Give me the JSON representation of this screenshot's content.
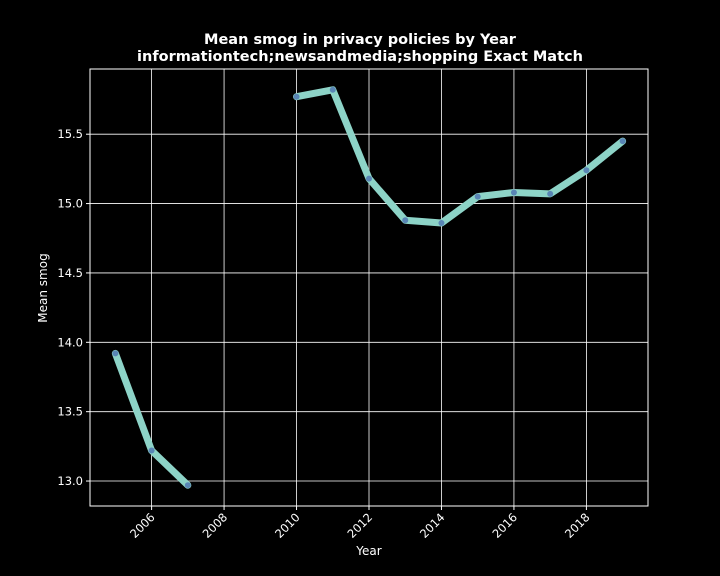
{
  "chart_data": {
    "type": "line",
    "title": "Mean smog in privacy policies by Year",
    "subtitle": "informationtech;newsandmedia;shopping Exact Match",
    "xlabel": "Year",
    "ylabel": "Mean smog",
    "xlim": [
      2004.3,
      2019.7
    ],
    "ylim": [
      12.82,
      15.97
    ],
    "x_ticks": [
      2006,
      2008,
      2010,
      2012,
      2014,
      2016,
      2018
    ],
    "y_ticks": [
      13.0,
      13.5,
      14.0,
      14.5,
      15.0,
      15.5
    ],
    "grid": true,
    "series": [
      {
        "segments": [
          {
            "x": [
              2005,
              2006,
              2007
            ],
            "y": [
              13.92,
              13.22,
              12.97
            ]
          },
          {
            "x": [
              2010,
              2011,
              2012,
              2013,
              2014,
              2015,
              2016,
              2017,
              2018,
              2019
            ],
            "y": [
              15.77,
              15.82,
              15.18,
              14.88,
              14.86,
              15.05,
              15.08,
              15.07,
              15.24,
              15.45
            ]
          }
        ]
      }
    ],
    "colors": {
      "background": "#000000",
      "axes": "#ffffff",
      "grid": "#ffffff",
      "line": "#8dd3c7",
      "marker": "#4c72b0"
    }
  }
}
